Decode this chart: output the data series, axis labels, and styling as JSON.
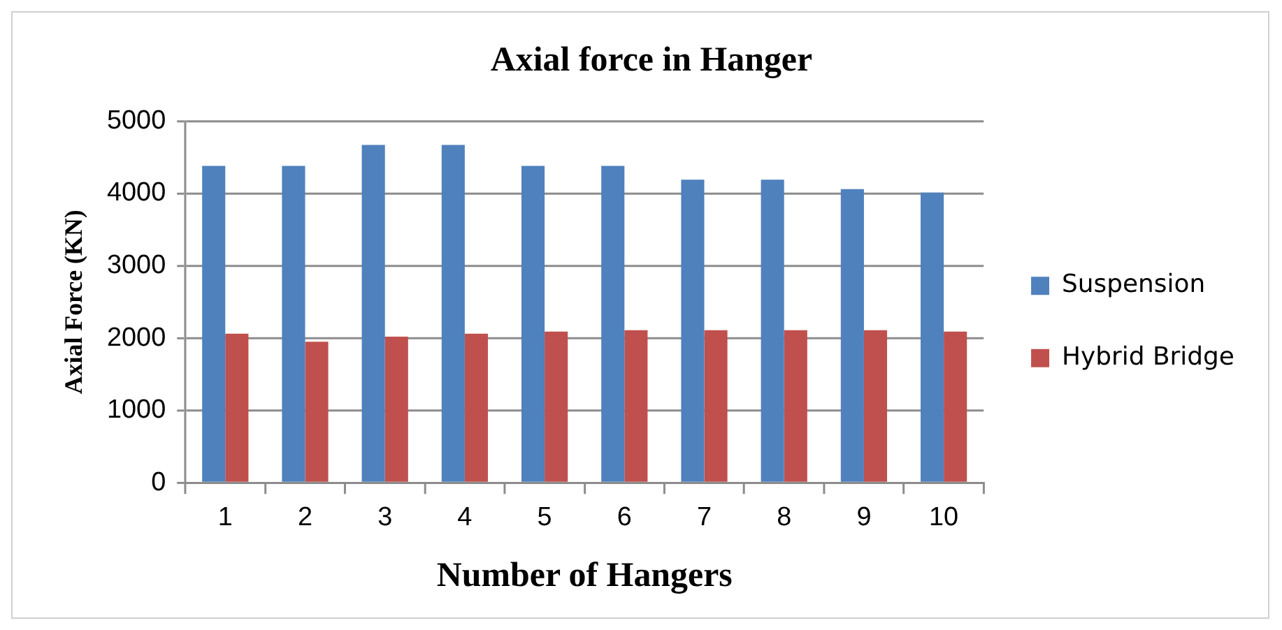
{
  "chart_data": {
    "type": "bar",
    "title": "Axial force in Hanger",
    "xlabel": "Number of Hangers",
    "ylabel": "Axial Force (KN)",
    "categories": [
      "1",
      "2",
      "3",
      "4",
      "5",
      "6",
      "7",
      "8",
      "9",
      "10"
    ],
    "series": [
      {
        "name": "Suspension",
        "color": "#4f81bd",
        "values": [
          4380,
          4380,
          4670,
          4670,
          4380,
          4380,
          4190,
          4190,
          4060,
          4010
        ]
      },
      {
        "name": "Hybrid Bridge",
        "color": "#c0504d",
        "values": [
          2060,
          1950,
          2020,
          2060,
          2090,
          2110,
          2110,
          2110,
          2110,
          2090
        ]
      }
    ],
    "ylim": [
      0,
      5000
    ],
    "yticks": [
      0,
      1000,
      2000,
      3000,
      4000,
      5000
    ],
    "grid": "y",
    "legend": "right"
  }
}
